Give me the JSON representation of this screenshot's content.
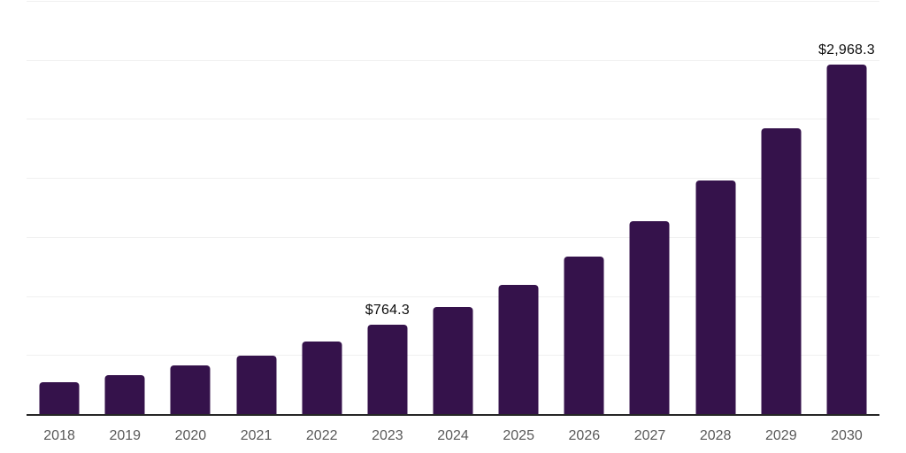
{
  "chart_data": {
    "type": "bar",
    "title": "",
    "xlabel": "",
    "ylabel": "",
    "categories": [
      "2018",
      "2019",
      "2020",
      "2021",
      "2022",
      "2023",
      "2024",
      "2025",
      "2026",
      "2027",
      "2028",
      "2029",
      "2030"
    ],
    "values": [
      280,
      340,
      420,
      505,
      620,
      764.3,
      915,
      1105,
      1340,
      1640,
      1990,
      2430,
      2968.3
    ],
    "value_labels": [
      "",
      "",
      "",
      "",
      "",
      "$764.3",
      "",
      "",
      "",
      "",
      "",
      "",
      "$2,968.3"
    ],
    "ylim": [
      0,
      3500
    ],
    "gridline_interval": 500,
    "grid": "horizontal",
    "legend": "none",
    "colors": {
      "bar": "#35124b",
      "gridline": "#f0f0f0",
      "axis_line": "#262626",
      "tick_label": "#595959",
      "data_label": "#0d0d0d",
      "background": "#ffffff"
    }
  }
}
